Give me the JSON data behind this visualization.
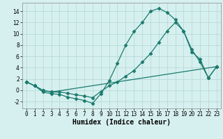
{
  "title": "",
  "xlabel": "Humidex (Indice chaleur)",
  "ylabel": "",
  "background_color": "#d6f0ef",
  "grid_color": "#b8dada",
  "line_color": "#1a7a6e",
  "xlim": [
    -0.5,
    23.5
  ],
  "ylim": [
    -3.2,
    15.5
  ],
  "yticks": [
    -2,
    0,
    2,
    4,
    6,
    8,
    10,
    12,
    14
  ],
  "xticks": [
    0,
    1,
    2,
    3,
    4,
    5,
    6,
    7,
    8,
    9,
    10,
    11,
    12,
    13,
    14,
    15,
    16,
    17,
    18,
    19,
    20,
    21,
    22,
    23
  ],
  "line1_x": [
    0,
    1,
    2,
    3,
    4,
    5,
    6,
    7,
    8,
    9,
    10,
    11,
    12,
    13,
    14,
    15,
    16,
    17,
    18,
    19,
    20,
    21,
    22,
    23
  ],
  "line1_y": [
    1.5,
    0.8,
    -0.3,
    -0.6,
    -0.7,
    -1.2,
    -1.5,
    -1.8,
    -2.3,
    -0.6,
    1.7,
    4.8,
    8.0,
    10.4,
    12.0,
    14.0,
    14.5,
    13.8,
    12.5,
    10.5,
    7.2,
    5.0,
    2.2,
    4.2
  ],
  "line2_x": [
    0,
    1,
    2,
    3,
    4,
    5,
    6,
    7,
    8,
    9,
    10,
    11,
    12,
    13,
    14,
    15,
    16,
    17,
    18,
    19,
    20,
    21,
    22,
    23
  ],
  "line2_y": [
    1.5,
    0.8,
    0.0,
    -0.3,
    -0.3,
    -0.5,
    -0.8,
    -1.0,
    -1.3,
    -0.2,
    0.8,
    1.5,
    2.5,
    3.5,
    5.0,
    6.5,
    8.5,
    10.5,
    12.0,
    10.5,
    6.8,
    5.5,
    2.2,
    4.2
  ],
  "line3_x": [
    0,
    1,
    2,
    3,
    23
  ],
  "line3_y": [
    1.5,
    0.8,
    0.0,
    -0.3,
    4.2
  ],
  "marker": "D",
  "markersize": 2.5,
  "linewidth": 0.9,
  "tick_fontsize": 5.5,
  "label_fontsize": 7.0
}
